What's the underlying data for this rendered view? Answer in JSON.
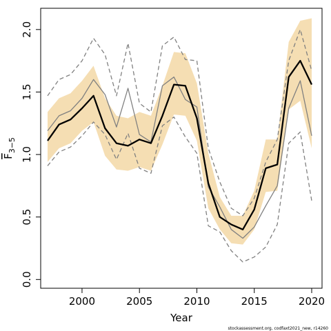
{
  "chart_data": {
    "type": "line",
    "xlabel": "Year",
    "ylabel": "F",
    "ylabel_subscript": "3−5",
    "footnote": "stockassessment.org, codfaxt2021_new, r14260",
    "xlim": [
      1996.4,
      2020.9
    ],
    "ylim": [
      -0.07,
      2.17
    ],
    "xticks": [
      2000,
      2005,
      2010,
      2015,
      2020
    ],
    "yticks": [
      0.0,
      0.5,
      1.0,
      1.5,
      2.0
    ],
    "ytick_labels": [
      "0.0",
      "0.5",
      "1.0",
      "1.5",
      "2.0"
    ],
    "grid": false,
    "colors": {
      "band": "#f5deb3",
      "estimate": "#000000",
      "other": "#808080"
    },
    "x": [
      1997,
      1998,
      1999,
      2000,
      2001,
      2002,
      2003,
      2004,
      2005,
      2006,
      2007,
      2008,
      2009,
      2010,
      2011,
      2012,
      2013,
      2014,
      2015,
      2016,
      2017,
      2018,
      2019,
      2020
    ],
    "band": {
      "upper": [
        1.34,
        1.45,
        1.49,
        1.59,
        1.71,
        1.45,
        1.31,
        1.29,
        1.34,
        1.31,
        1.55,
        1.82,
        1.81,
        1.57,
        1.01,
        0.66,
        0.51,
        0.51,
        0.71,
        1.12,
        1.12,
        1.9,
        2.07,
        2.09
      ],
      "lower": [
        0.94,
        1.05,
        1.09,
        1.19,
        1.26,
        0.99,
        0.88,
        0.87,
        0.9,
        0.87,
        1.08,
        1.32,
        1.31,
        1.11,
        0.57,
        0.4,
        0.29,
        0.28,
        0.4,
        0.7,
        0.71,
        1.36,
        1.43,
        1.05
      ]
    },
    "series": [
      {
        "values": [
          1.11,
          1.24,
          1.28,
          1.37,
          1.47,
          1.21,
          1.09,
          1.07,
          1.12,
          1.09,
          1.31,
          1.56,
          1.55,
          1.29,
          0.77,
          0.5,
          0.44,
          0.4,
          0.56,
          0.89,
          0.92,
          1.62,
          1.75,
          1.56
        ],
        "style": "solid",
        "color": "#000000",
        "width": 2.3
      },
      {
        "values": [
          1.19,
          1.31,
          1.35,
          1.45,
          1.6,
          1.48,
          1.22,
          1.53,
          1.16,
          1.1,
          1.55,
          1.62,
          1.44,
          1.38,
          0.74,
          0.58,
          0.4,
          0.33,
          0.42,
          0.59,
          0.75,
          1.37,
          1.59,
          1.15
        ],
        "style": "solid",
        "color": "#808080",
        "width": 1.3
      },
      {
        "values": [
          1.47,
          1.6,
          1.64,
          1.75,
          1.93,
          1.8,
          1.47,
          1.89,
          1.41,
          1.34,
          1.87,
          1.94,
          1.76,
          1.75,
          1.05,
          0.78,
          0.57,
          0.51,
          0.65,
          0.94,
          1.12,
          1.75,
          2.0,
          1.67
        ],
        "style": "dashed",
        "color": "#808080",
        "width": 1.3
      },
      {
        "values": [
          0.91,
          1.02,
          1.06,
          1.15,
          1.26,
          1.16,
          0.96,
          1.17,
          0.89,
          0.85,
          1.23,
          1.3,
          1.14,
          1.01,
          0.43,
          0.38,
          0.23,
          0.14,
          0.18,
          0.26,
          0.44,
          1.09,
          1.18,
          0.63
        ],
        "style": "dashed",
        "color": "#808080",
        "width": 1.3
      }
    ]
  }
}
